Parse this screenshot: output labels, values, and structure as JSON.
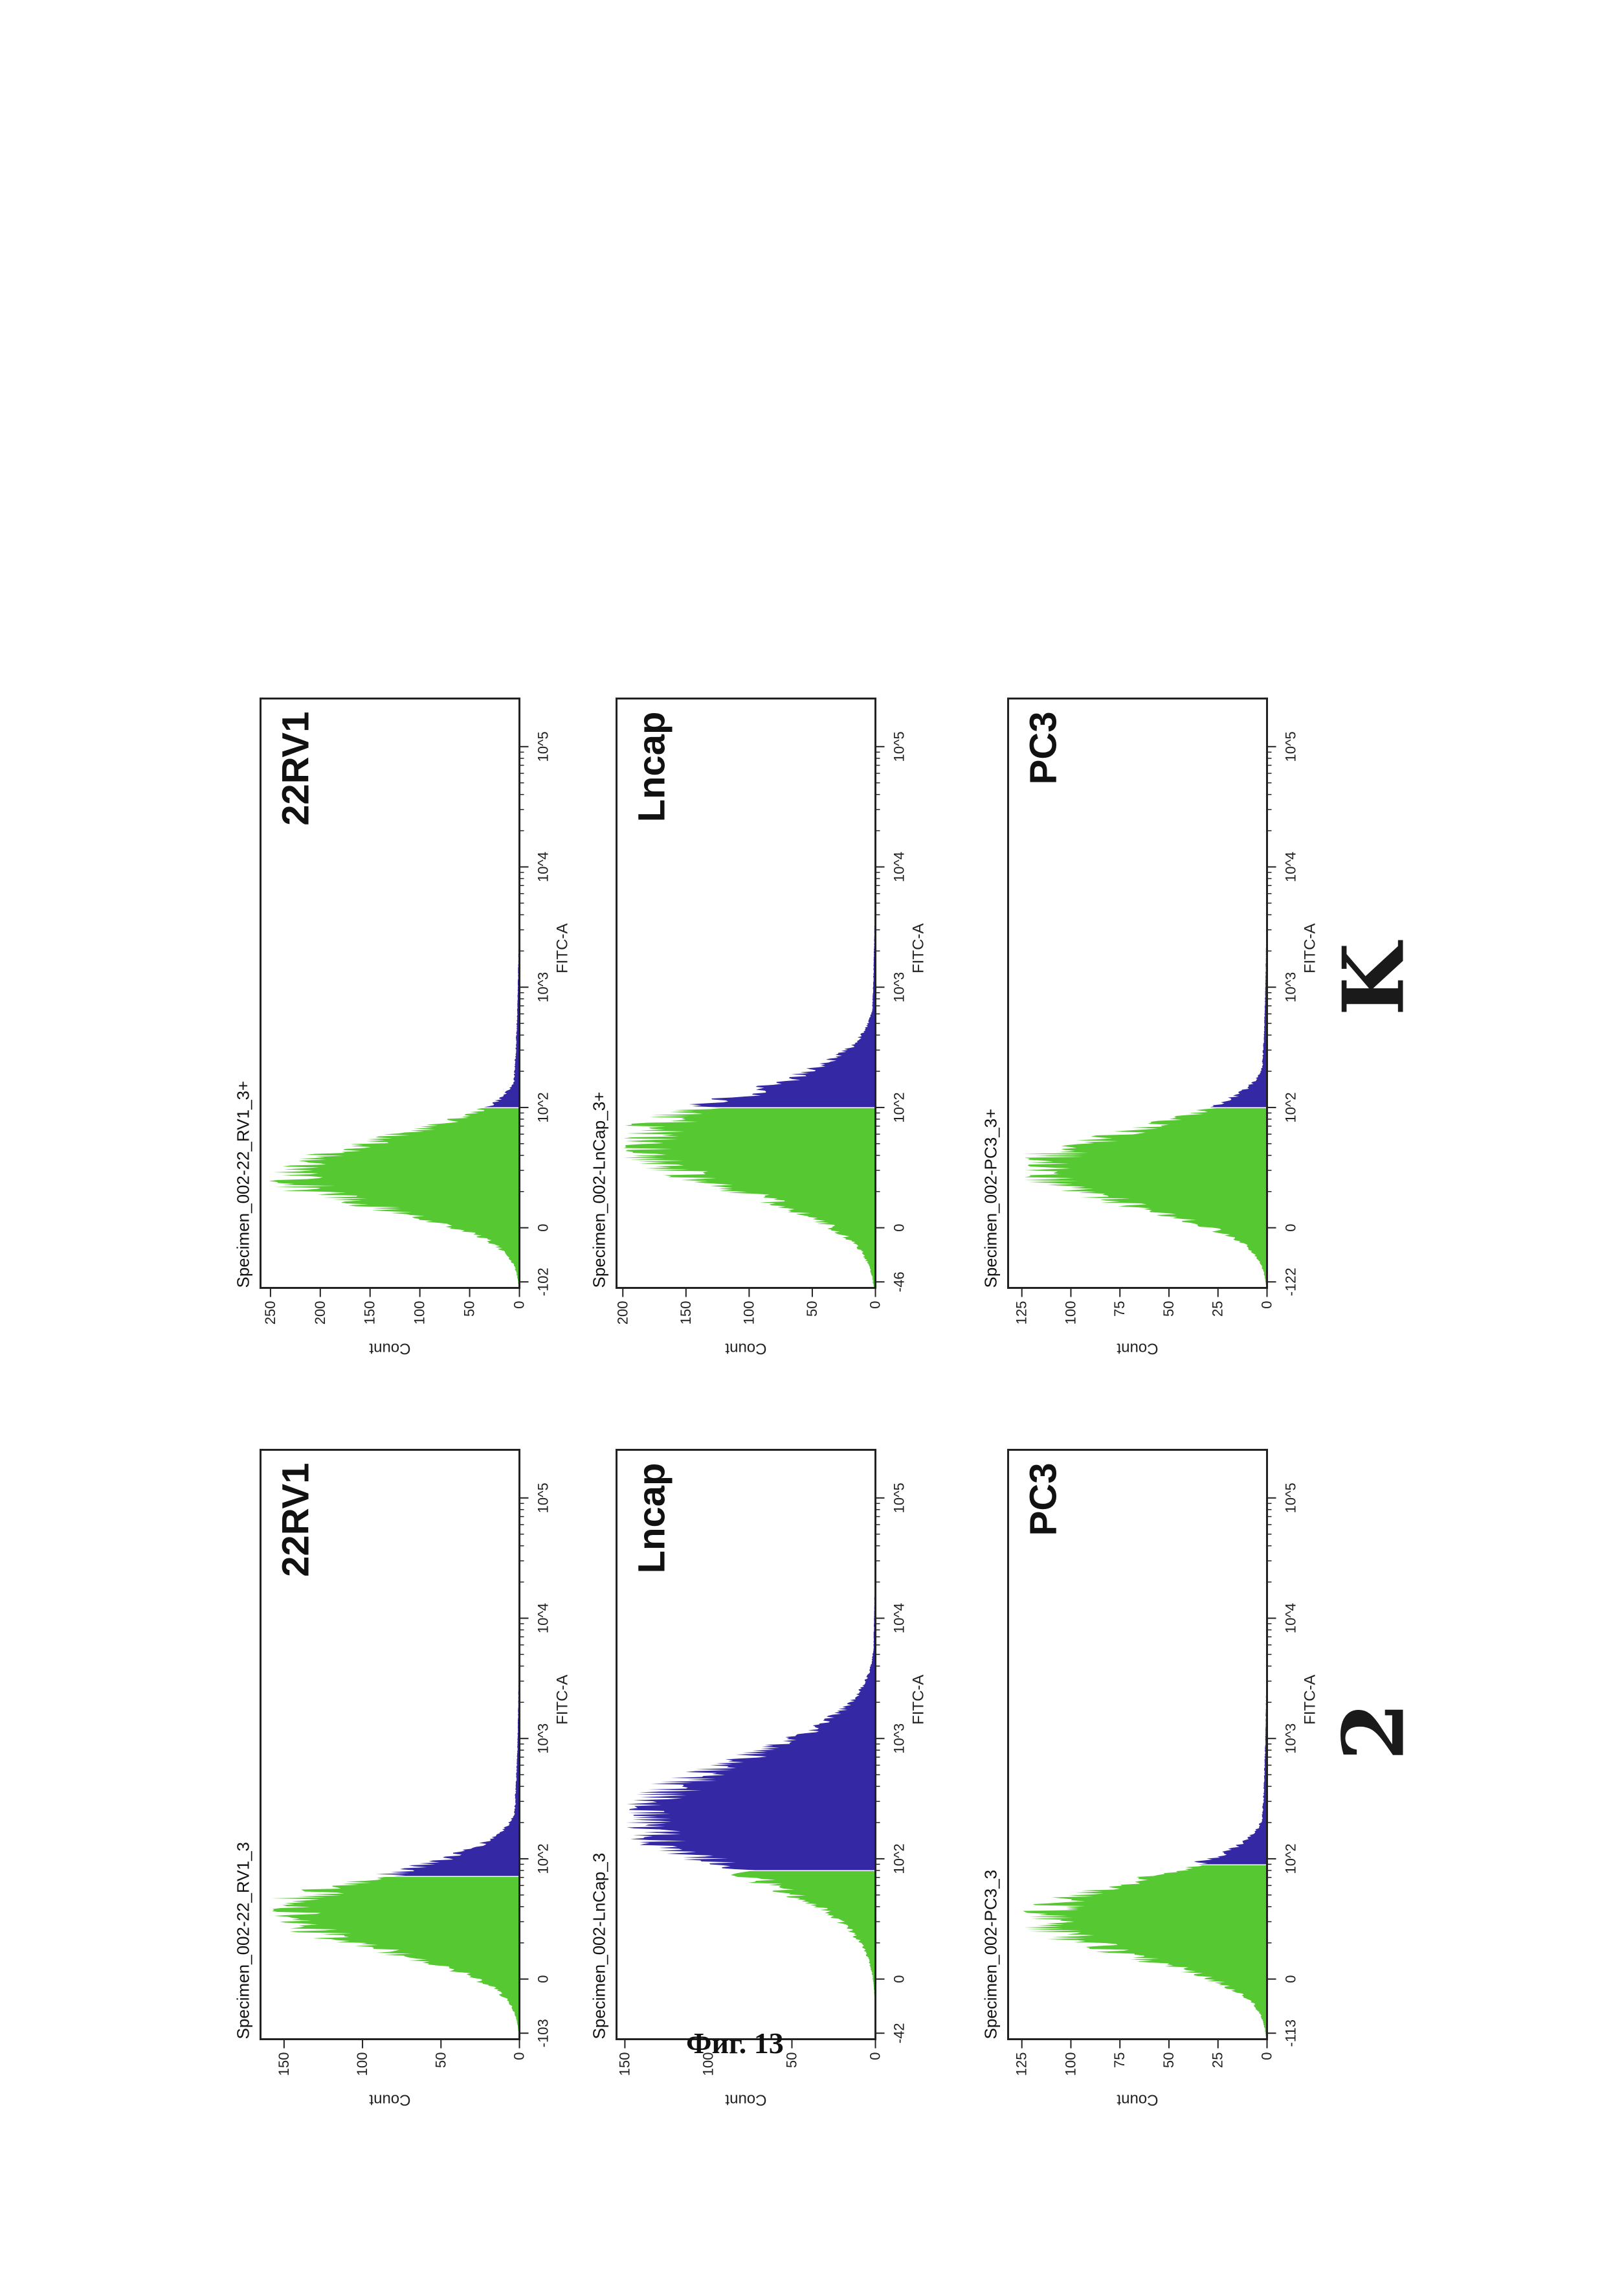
{
  "figure_caption": "Фиг. 13",
  "colors": {
    "negative_fill": "#55c832",
    "positive_fill": "#3428a4",
    "frame": "#222222"
  },
  "panel_groups": [
    {
      "label": "K",
      "column": "left"
    },
    {
      "label": "2",
      "column": "right"
    }
  ],
  "chart_data": [
    {
      "type": "area",
      "title": "Specimen_002-22_RV1_3+",
      "cell_line": "22RV1",
      "group": "K",
      "xlabel": "FITC-A",
      "ylabel": "Count",
      "x_scale": "biexponential",
      "x_range_label": "-102",
      "x_ticks": [
        "-102",
        "0",
        "10^2",
        "10^3",
        "10^4",
        "10^5"
      ],
      "y_ticks": [
        "0",
        "50",
        "100",
        "150",
        "200",
        "250"
      ],
      "ylim": [
        0,
        260
      ],
      "gate": "10^2",
      "peak_x_log10": 1.45,
      "peak_count": 252,
      "gate_log10": 2.0,
      "spread": 0.28
    },
    {
      "type": "area",
      "title": "Specimen_002-LnCap_3+",
      "cell_line": "Lncap",
      "group": "K",
      "xlabel": "FITC-A",
      "ylabel": "Count",
      "x_scale": "biexponential",
      "x_ticks": [
        "-46",
        "0",
        "10^2",
        "10^3",
        "10^4",
        "10^5"
      ],
      "y_ticks": [
        "0",
        "50",
        "100",
        "150",
        "200"
      ],
      "ylim": [
        0,
        205
      ],
      "gate": "10^2",
      "peak_x_log10": 1.7,
      "peak_count": 200,
      "gate_log10": 2.0,
      "spread": 0.38
    },
    {
      "type": "area",
      "title": "Specimen_002-PC3_3+",
      "cell_line": "PC3",
      "group": "K",
      "xlabel": "FITC-A",
      "ylabel": "Count",
      "x_scale": "biexponential",
      "x_ticks": [
        "-122",
        "0",
        "10^2",
        "10^3",
        "10^4",
        "10^5"
      ],
      "y_ticks": [
        "0",
        "25",
        "50",
        "75",
        "100",
        "125"
      ],
      "ylim": [
        0,
        132
      ],
      "gate": "10^2",
      "peak_x_log10": 1.5,
      "peak_count": 125,
      "gate_log10": 2.0,
      "spread": 0.3
    },
    {
      "type": "area",
      "title": "Specimen_002-22_RV1_3",
      "cell_line": "22RV1",
      "group": "2",
      "xlabel": "FITC-A",
      "ylabel": "Count",
      "x_scale": "biexponential",
      "x_ticks": [
        "-103",
        "0",
        "10^2",
        "10^3",
        "10^4",
        "10^5"
      ],
      "y_ticks": [
        "0",
        "50",
        "100",
        "150"
      ],
      "ylim": [
        0,
        165
      ],
      "gate": "10^2",
      "peak_x_log10": 1.55,
      "peak_count": 160,
      "gate_log10": 1.85,
      "spread": 0.3
    },
    {
      "type": "area",
      "title": "Specimen_002-LnCap_3",
      "cell_line": "Lncap",
      "group": "2",
      "xlabel": "FITC-A",
      "ylabel": "Count",
      "x_scale": "biexponential",
      "x_ticks": [
        "-42",
        "0",
        "10^2",
        "10^3",
        "10^4",
        "10^5"
      ],
      "y_ticks": [
        "0",
        "50",
        "100",
        "150"
      ],
      "ylim": [
        0,
        155
      ],
      "gate": "10^2",
      "peak_x_log10": 2.35,
      "peak_count": 150,
      "gate_log10": 1.9,
      "spread": 0.45
    },
    {
      "type": "area",
      "title": "Specimen_002-PC3_3",
      "cell_line": "PC3",
      "group": "2",
      "xlabel": "FITC-A",
      "ylabel": "Count",
      "x_scale": "biexponential",
      "x_ticks": [
        "-113",
        "0",
        "10^2",
        "10^3",
        "10^4",
        "10^5"
      ],
      "y_ticks": [
        "0",
        "25",
        "50",
        "75",
        "100",
        "125"
      ],
      "ylim": [
        0,
        132
      ],
      "gate": "10^2",
      "peak_x_log10": 1.5,
      "peak_count": 125,
      "gate_log10": 1.95,
      "spread": 0.3
    }
  ]
}
